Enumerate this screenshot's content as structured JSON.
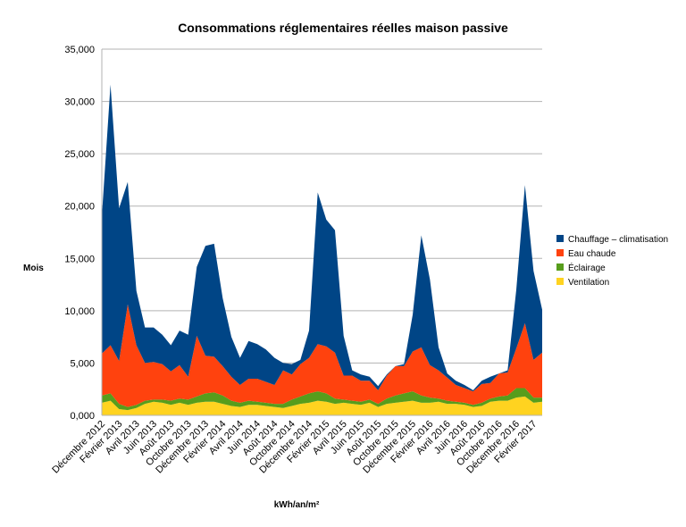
{
  "chart_data": {
    "type": "area",
    "stacked": true,
    "title": "Consommations réglementaires réelles maison passive",
    "ylabel": "Mois",
    "xlabel": "kWh/an/m²",
    "ylim": [
      0,
      35000
    ],
    "yticks": [
      "0,000",
      "5,000",
      "10,000",
      "15,000",
      "20,000",
      "25,000",
      "30,000",
      "35,000"
    ],
    "grid": true,
    "legend_position": "right",
    "x_tick_labels": [
      "Décembre 2012",
      "Février 2013",
      "Avril 2013",
      "Juin 2013",
      "Août 2013",
      "Octobre 2013",
      "Décembre 2013",
      "Février 2014",
      "Avril 2014",
      "Juin 2014",
      "Août 2014",
      "Octobre 2014",
      "Décembre 2014",
      "Février 2015",
      "Avril 2015",
      "Juin 2015",
      "Août 2015",
      "Octobre 2015",
      "Décembre 2015",
      "Février 2016",
      "Avril 2016",
      "Juin 2016",
      "Août 2016",
      "Octobre 2016",
      "Décembre 2016",
      "Février 2017"
    ],
    "x": [
      "Décembre 2012",
      "Janvier 2013",
      "Février 2013",
      "Mars 2013",
      "Avril 2013",
      "Mai 2013",
      "Juin 2013",
      "Juillet 2013",
      "Août 2013",
      "Septembre 2013",
      "Octobre 2013",
      "Novembre 2013",
      "Décembre 2013",
      "Janvier 2014",
      "Février 2014",
      "Mars 2014",
      "Avril 2014",
      "Mai 2014",
      "Juin 2014",
      "Juillet 2014",
      "Août 2014",
      "Septembre 2014",
      "Octobre 2014",
      "Novembre 2014",
      "Décembre 2014",
      "Janvier 2015",
      "Février 2015",
      "Mars 2015",
      "Avril 2015",
      "Mai 2015",
      "Juin 2015",
      "Juillet 2015",
      "Août 2015",
      "Septembre 2015",
      "Octobre 2015",
      "Novembre 2015",
      "Décembre 2015",
      "Janvier 2016",
      "Février 2016",
      "Mars 2016",
      "Avril 2016",
      "Mai 2016",
      "Juin 2016",
      "Juillet 2016",
      "Août 2016",
      "Septembre 2016",
      "Octobre 2016",
      "Novembre 2016",
      "Décembre 2016",
      "Janvier 2017",
      "Février 2017",
      "Mars 2017"
    ],
    "series": [
      {
        "name": "Ventilation",
        "color": "#ffd320",
        "values": [
          1200,
          1400,
          600,
          500,
          700,
          1100,
          1300,
          1200,
          1000,
          1200,
          1000,
          1200,
          1300,
          1300,
          1100,
          900,
          800,
          1000,
          1000,
          900,
          800,
          700,
          900,
          1100,
          1200,
          1400,
          1300,
          1100,
          1200,
          1100,
          1000,
          1200,
          800,
          1100,
          1200,
          1300,
          1400,
          1200,
          1200,
          1300,
          1100,
          1100,
          1000,
          800,
          900,
          1300,
          1400,
          1400,
          1700,
          1800,
          1200,
          1300
        ]
      },
      {
        "name": "Éclairage",
        "color": "#579d1c",
        "values": [
          700,
          700,
          500,
          300,
          300,
          300,
          200,
          300,
          400,
          400,
          500,
          600,
          800,
          900,
          800,
          500,
          400,
          400,
          300,
          300,
          300,
          400,
          600,
          700,
          900,
          900,
          800,
          500,
          300,
          300,
          300,
          300,
          300,
          500,
          700,
          800,
          900,
          700,
          500,
          300,
          300,
          200,
          200,
          200,
          300,
          300,
          400,
          500,
          900,
          800,
          500,
          400
        ]
      },
      {
        "name": "Eau chaude",
        "color": "#ff420e",
        "values": [
          4000,
          4600,
          4100,
          9800,
          5700,
          3600,
          3600,
          3400,
          2800,
          3200,
          2200,
          5800,
          3600,
          3400,
          2800,
          2300,
          1700,
          2100,
          2200,
          2000,
          1800,
          3200,
          2400,
          3100,
          3400,
          4500,
          4500,
          4400,
          2300,
          2400,
          2000,
          1800,
          1300,
          2200,
          2800,
          2600,
          3800,
          4600,
          3100,
          2700,
          2200,
          1600,
          1400,
          1300,
          1800,
          1500,
          2200,
          2200,
          3800,
          6200,
          3600,
          4300
        ]
      },
      {
        "name": "Chauffage – climatisation",
        "color": "#004586",
        "values": [
          13100,
          24900,
          14600,
          11700,
          5200,
          3400,
          3300,
          2800,
          2500,
          3300,
          4000,
          6600,
          10500,
          10800,
          6500,
          3800,
          2600,
          3600,
          3300,
          3100,
          2600,
          700,
          1000,
          400,
          2600,
          14500,
          12100,
          11700,
          3800,
          500,
          600,
          400,
          400,
          100,
          0,
          200,
          3500,
          10700,
          8200,
          2200,
          400,
          400,
          300,
          100,
          300,
          600,
          0,
          200,
          5600,
          13200,
          8500,
          4100
        ]
      }
    ]
  }
}
